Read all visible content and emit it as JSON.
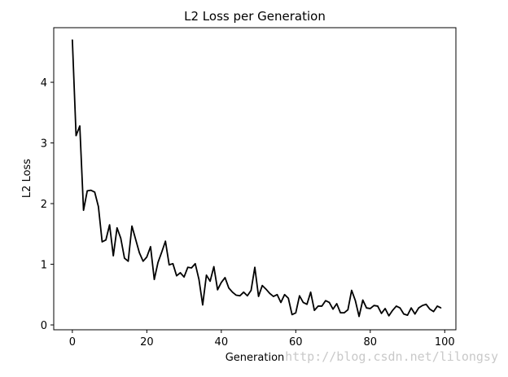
{
  "chart_data": {
    "type": "line",
    "title": "L2 Loss per Generation",
    "xlabel": "Generation",
    "ylabel": "L2 Loss",
    "xlim": [
      -5,
      103
    ],
    "ylim": [
      -0.08,
      4.9
    ],
    "xticks": [
      0,
      20,
      40,
      60,
      80,
      100
    ],
    "yticks": [
      0,
      1,
      2,
      3,
      4
    ],
    "grid": false,
    "line_color": "#000000",
    "x": [
      0,
      1,
      2,
      3,
      4,
      5,
      6,
      7,
      8,
      9,
      10,
      11,
      12,
      13,
      14,
      15,
      16,
      17,
      18,
      19,
      20,
      21,
      22,
      23,
      24,
      25,
      26,
      27,
      28,
      29,
      30,
      31,
      32,
      33,
      34,
      35,
      36,
      37,
      38,
      39,
      40,
      41,
      42,
      43,
      44,
      45,
      46,
      47,
      48,
      49,
      50,
      51,
      52,
      53,
      54,
      55,
      56,
      57,
      58,
      59,
      60,
      61,
      62,
      63,
      64,
      65,
      66,
      67,
      68,
      69,
      70,
      71,
      72,
      73,
      74,
      75,
      76,
      77,
      78,
      79,
      80,
      81,
      82,
      83,
      84,
      85,
      86,
      87,
      88,
      89,
      90,
      91,
      92,
      93,
      94,
      95,
      96,
      97,
      98,
      99
    ],
    "series": [
      {
        "values": [
          4.7,
          3.12,
          3.28,
          1.89,
          2.21,
          2.22,
          2.19,
          1.95,
          1.37,
          1.4,
          1.65,
          1.14,
          1.6,
          1.43,
          1.1,
          1.05,
          1.63,
          1.41,
          1.19,
          1.05,
          1.12,
          1.29,
          0.75,
          1.03,
          1.2,
          1.38,
          0.99,
          1.01,
          0.81,
          0.86,
          0.79,
          0.95,
          0.94,
          1.01,
          0.75,
          0.33,
          0.82,
          0.72,
          0.96,
          0.58,
          0.7,
          0.78,
          0.61,
          0.54,
          0.49,
          0.48,
          0.54,
          0.48,
          0.57,
          0.95,
          0.47,
          0.65,
          0.59,
          0.52,
          0.47,
          0.5,
          0.37,
          0.5,
          0.44,
          0.17,
          0.2,
          0.48,
          0.37,
          0.34,
          0.54,
          0.24,
          0.31,
          0.31,
          0.4,
          0.37,
          0.26,
          0.35,
          0.2,
          0.2,
          0.25,
          0.57,
          0.4,
          0.14,
          0.41,
          0.28,
          0.27,
          0.32,
          0.31,
          0.19,
          0.27,
          0.15,
          0.24,
          0.31,
          0.28,
          0.18,
          0.16,
          0.28,
          0.18,
          0.28,
          0.32,
          0.34,
          0.26,
          0.22,
          0.31,
          0.28
        ]
      }
    ]
  },
  "watermark": "http://blog.csdn.net/lilongsy"
}
